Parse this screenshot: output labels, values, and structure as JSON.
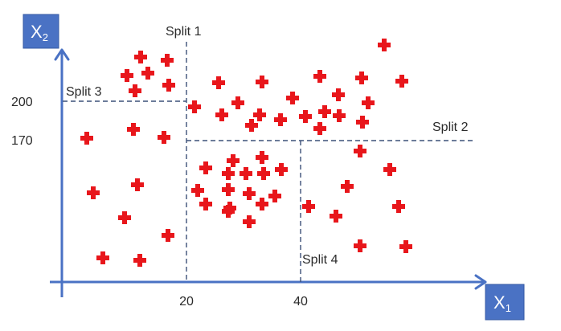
{
  "axes": {
    "x": {
      "name": "X",
      "subscript": "1"
    },
    "y": {
      "name": "X",
      "subscript": "2"
    }
  },
  "splits": {
    "split1": "Split 1",
    "split2": "Split 2",
    "split3": "Split 3",
    "split4": "Split 4"
  },
  "ticks": {
    "x": [
      "20",
      "40"
    ],
    "y": [
      "200",
      "170"
    ]
  },
  "colors": {
    "axis": "#4a72c4",
    "point": "#e8161b",
    "split_line": "#3c5078"
  },
  "point_marker": "red-plus",
  "point_count": 63
}
